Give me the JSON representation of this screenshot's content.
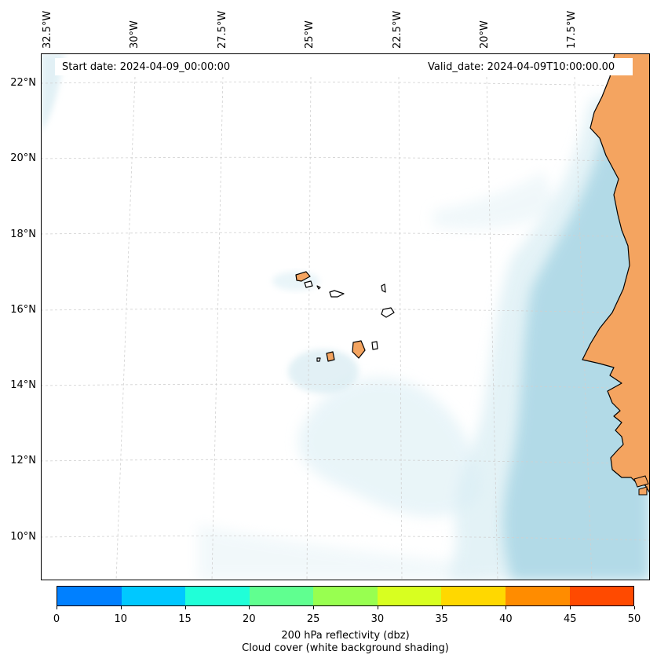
{
  "map": {
    "start_date": "Start date: 2024-04-09_00:00:00",
    "valid_date": "Valid_date: 2024-04-09T10:00:00.00",
    "lon_ticks": [
      "32.5°W",
      "30°W",
      "27.5°W",
      "25°W",
      "22.5°W",
      "20°W",
      "17.5°W"
    ],
    "lat_ticks": [
      "22°N",
      "20°N",
      "18°N",
      "16°N",
      "14°N",
      "12°N",
      "10°N"
    ],
    "region": "Cape Verde islands and West African coast",
    "land_color": "#f4a460",
    "cloud_color": "#add8e6",
    "grid": "dashed light gray"
  },
  "colorbar": {
    "ticks": [
      "0",
      "10",
      "15",
      "20",
      "25",
      "30",
      "35",
      "40",
      "45",
      "50"
    ],
    "colors": [
      "#0080ff",
      "#00c8ff",
      "#20ffd8",
      "#60ff90",
      "#98ff50",
      "#d8ff20",
      "#ffd800",
      "#ff8c00",
      "#ff4a00"
    ],
    "label_line1": "200 hPa reflectivity (dbz)",
    "label_line2": "Cloud cover (white background shading)"
  }
}
